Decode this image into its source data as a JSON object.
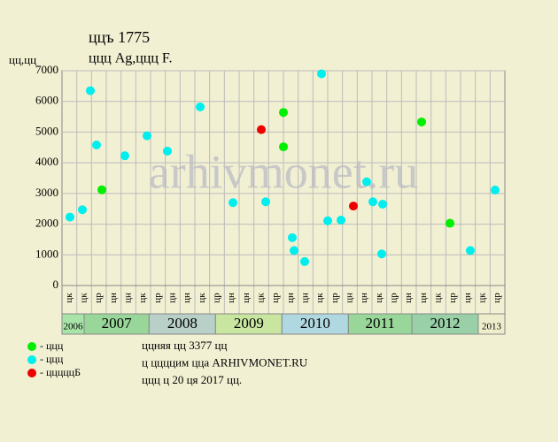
{
  "chart_data": {
    "type": "scatter",
    "title": "ццъ 1775",
    "subtitle": "ццц Ag,ццц F.",
    "y_label": "цц,цц",
    "watermark": "arhivmonet.ru",
    "xlim": [
      0,
      30
    ],
    "ylim": [
      0,
      7000
    ],
    "yticks": [
      0,
      1000,
      2000,
      3000,
      4000,
      5000,
      6000,
      7000
    ],
    "grid": true,
    "columns": [
      "цк",
      "цк",
      "цр",
      "цн",
      "цн",
      "цк",
      "цр",
      "цн",
      "цн",
      "цк",
      "цр",
      "цн",
      "цн",
      "цк",
      "цр",
      "цн",
      "цн",
      "цк",
      "цр",
      "цн",
      "цн",
      "цк",
      "цр",
      "цн",
      "цн",
      "цк",
      "цр",
      "цн",
      "цк",
      "цр"
    ],
    "years": [
      {
        "label": "2006",
        "from": 0,
        "to": 1.5,
        "color": "#a8e4a8"
      },
      {
        "label": "2007",
        "from": 1.5,
        "to": 5.9,
        "color": "#99d699"
      },
      {
        "label": "2008",
        "from": 5.9,
        "to": 10.4,
        "color": "#b8d0c8"
      },
      {
        "label": "2009",
        "from": 10.4,
        "to": 14.9,
        "color": "#c8e6a0"
      },
      {
        "label": "2010",
        "from": 14.9,
        "to": 19.4,
        "color": "#b0d8e0"
      },
      {
        "label": "2011",
        "from": 19.4,
        "to": 23.7,
        "color": "#99d699"
      },
      {
        "label": "2012",
        "from": 23.7,
        "to": 28.2,
        "color": "#99d0a8"
      },
      {
        "label": "2013",
        "from": 28.2,
        "to": 30,
        "color": "#eeeecc"
      }
    ],
    "series": [
      {
        "name": "- ццц",
        "color": "#00ee00",
        "x": [
          2.7,
          15.0,
          15.0,
          24.36,
          26.28
        ],
        "values": [
          3120,
          5640,
          4520,
          5330,
          2030
        ]
      },
      {
        "name": "- ццц",
        "color": "#00eeee",
        "x": [
          0.54,
          1.38,
          1.92,
          2.34,
          4.26,
          5.76,
          7.14,
          9.36,
          11.58,
          13.8,
          15.6,
          15.72,
          16.44,
          17.58,
          18.0,
          18.9,
          20.64,
          21.06,
          21.72,
          21.66,
          27.66,
          29.34
        ],
        "values": [
          2230,
          2470,
          6350,
          4580,
          4230,
          4880,
          4380,
          5820,
          2700,
          2730,
          1560,
          1140,
          780,
          6900,
          2110,
          2130,
          3380,
          2730,
          2650,
          1030,
          1140,
          3110
        ]
      },
      {
        "name": "- цццццБ",
        "color": "#ee0000",
        "x": [
          13.5,
          19.74
        ],
        "values": [
          5080,
          2590
        ]
      }
    ],
    "notes": [
      "ццняя цц 3377 цц",
      "ц ццццим цца ARHIVMONET.RU",
      "ццц ц 20 ця 2017 цц."
    ]
  }
}
